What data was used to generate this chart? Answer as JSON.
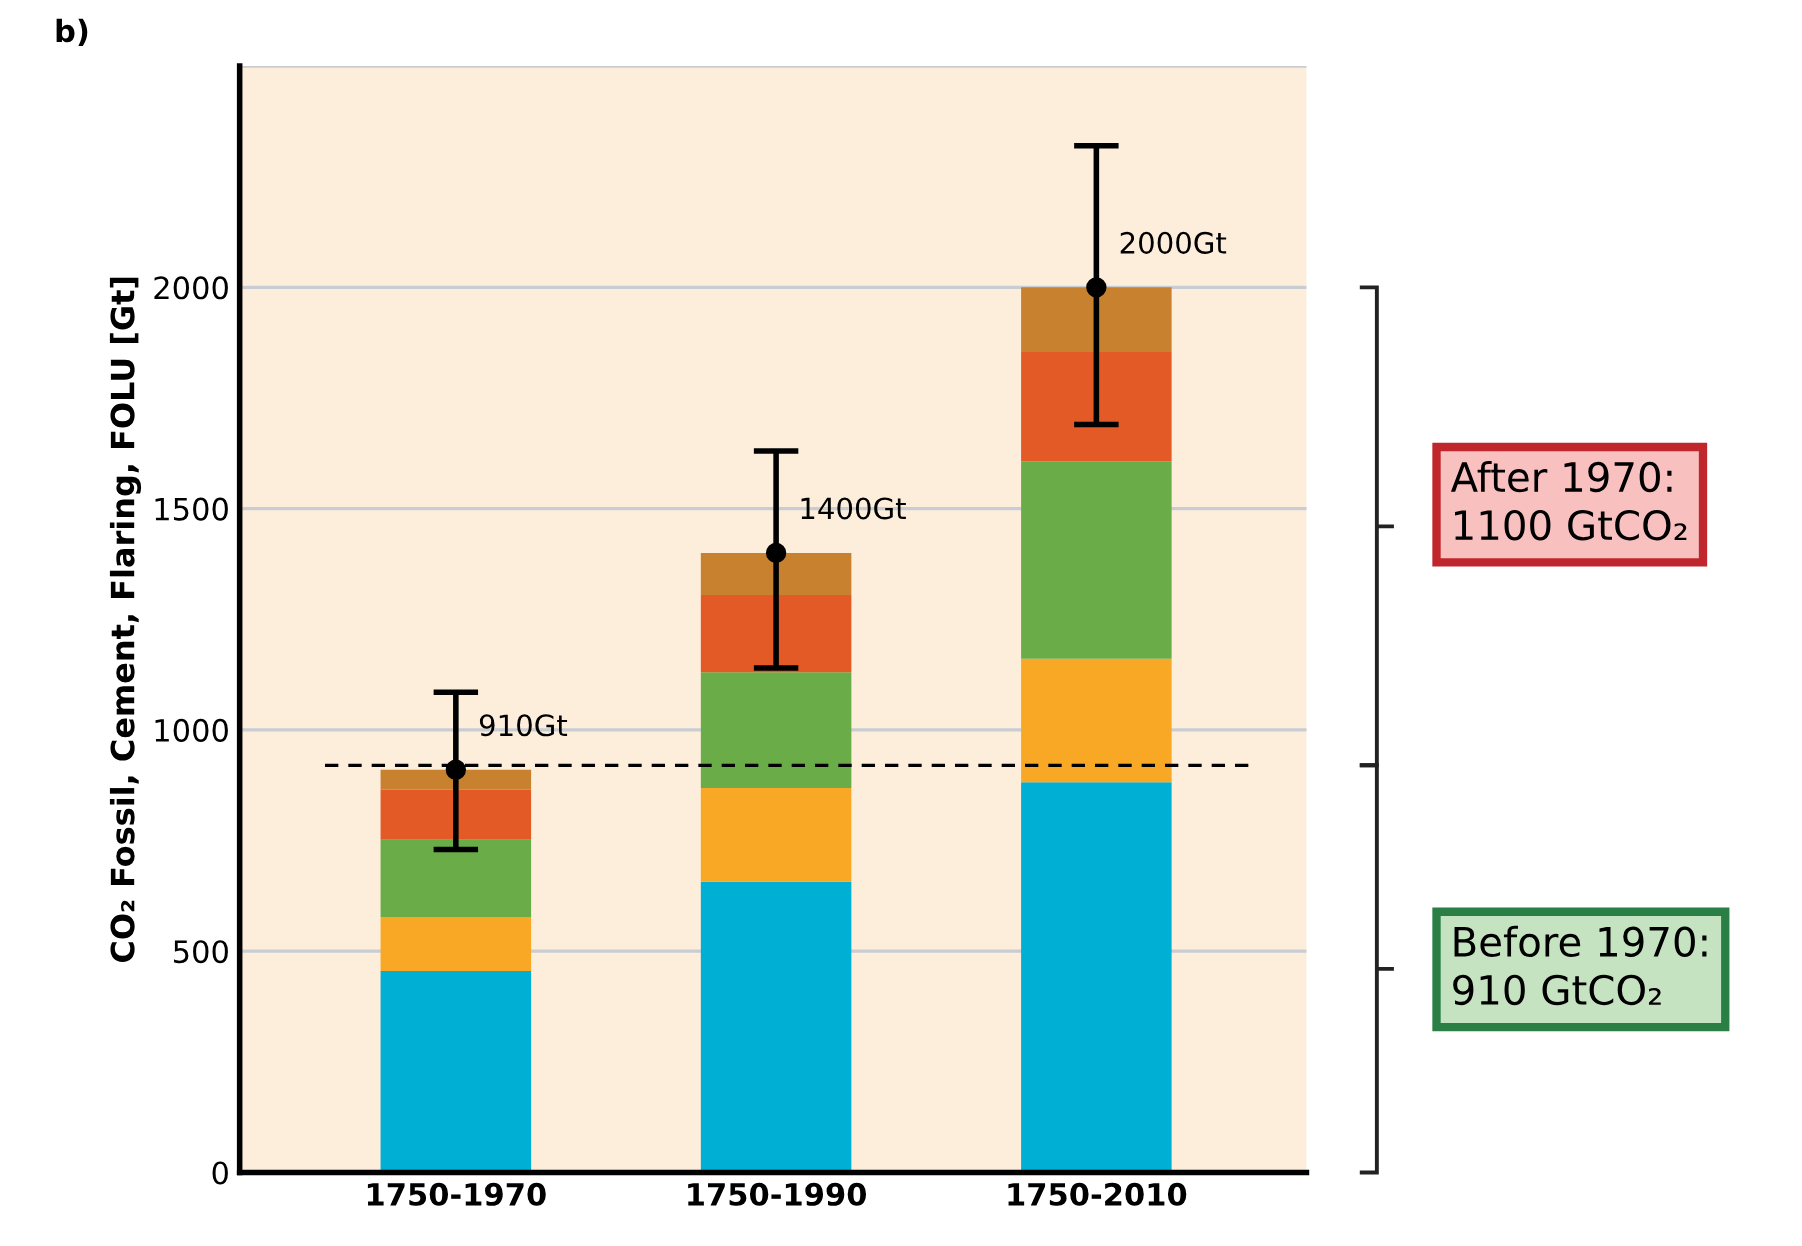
{
  "chart_data": {
    "type": "bar",
    "stacked": true,
    "ylabel": "CO₂ Fossil, Cement, Flaring, FOLU [Gt]",
    "categories": [
      "1750-1970",
      "1750-1990",
      "1750-2010"
    ],
    "series": [
      {
        "color": "#00b0d4",
        "values": [
          455,
          657,
          882
        ]
      },
      {
        "color": "#f9a825",
        "values": [
          122,
          212,
          279
        ]
      },
      {
        "color": "#6aad48",
        "values": [
          175,
          261,
          446
        ]
      },
      {
        "color": "#e35a26",
        "values": [
          113,
          175,
          247
        ]
      },
      {
        "color": "#c8812f",
        "values": [
          45,
          95,
          146
        ]
      },
      {
        "type": "scatter",
        "x": [
          "1750-1970",
          "1750-1990",
          "1750-2010"
        ],
        "color": "#000000",
        "marker": "circle",
        "values": [
          910,
          1400,
          2000
        ],
        "errors": [
          [
            730,
            1085
          ],
          [
            1140,
            1630
          ],
          [
            1690,
            2320
          ]
        ],
        "value_labels": [
          "910Gt",
          "1400Gt",
          "2000Gt"
        ]
      }
    ],
    "ylim": [
      0,
      2500
    ],
    "yticks": [
      0,
      500,
      1000,
      1500,
      2000,
      {
        "value": 2500,
        "label": null
      }
    ],
    "grid": "y",
    "ref_lines": [
      {
        "axis": "y",
        "value": 920,
        "color": "#000000",
        "line_style": "dashed"
      }
    ],
    "annotations": [
      "b)",
      "After 1970:\n1100 GtCO₂",
      "Before 1970:\n910 GtCO₂"
    ]
  }
}
